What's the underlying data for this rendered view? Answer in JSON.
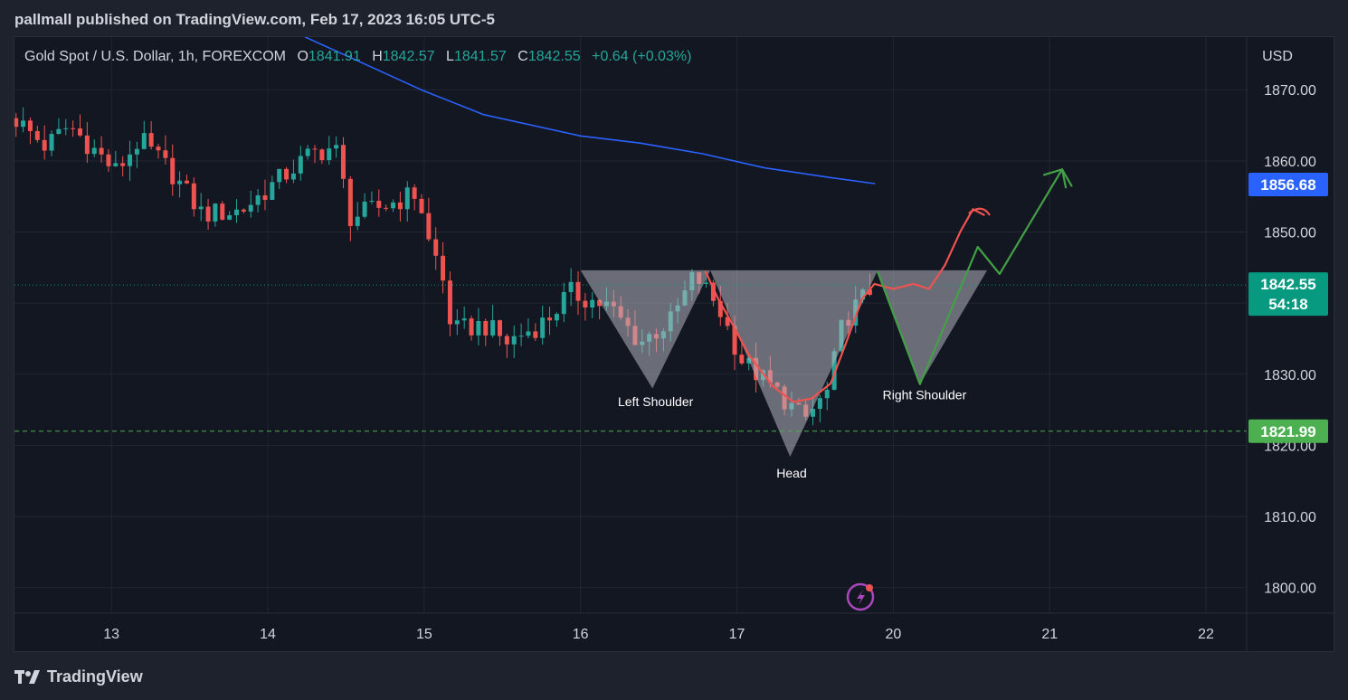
{
  "header": {
    "published": "pallmall published on TradingView.com, Feb 17, 2023 16:05 UTC-5"
  },
  "legend": {
    "symbol": "Gold Spot / U.S. Dollar, 1h, FOREXCOM",
    "o_label": "O",
    "o": "1841.91",
    "h_label": "H",
    "h": "1842.57",
    "l_label": "L",
    "l": "1841.57",
    "c_label": "C",
    "c": "1842.55",
    "change": "+0.64 (+0.03%)"
  },
  "footer": {
    "brand": "TradingView"
  },
  "colors": {
    "up": "#26a69a",
    "down": "#ef5350",
    "ma": "#2962ff",
    "ma_badge": "#2962ff",
    "price_badge": "#089981",
    "support_badge": "#4caf50",
    "projection_red": "#ef5350",
    "projection_green": "#43a047",
    "pattern_fill": "#b2b5be"
  },
  "chart_data": {
    "type": "candlestick",
    "currency": "USD",
    "x_ticks": [
      {
        "label": "13",
        "t": 0.62
      },
      {
        "label": "14",
        "t": 1.62
      },
      {
        "label": "15",
        "t": 2.62
      },
      {
        "label": "16",
        "t": 3.62
      },
      {
        "label": "17",
        "t": 4.62
      },
      {
        "label": "20",
        "t": 5.62
      },
      {
        "label": "21",
        "t": 6.62
      },
      {
        "label": "22",
        "t": 7.62
      }
    ],
    "y_ticks": [
      1870,
      1860,
      1850,
      1840,
      1830,
      1820,
      1810,
      1800
    ],
    "y_tick_labels": [
      "1870.00",
      "1860.00",
      "1850.00",
      "1830.00",
      "1820.00",
      "1810.00",
      "1800.00"
    ],
    "ylim": [
      1796.4,
      1877.4
    ],
    "xlim": [
      0.0,
      7.88
    ],
    "grid": true,
    "last_price": {
      "value": 1842.55,
      "label": "1842.55",
      "countdown": "54:18"
    },
    "ma_value": {
      "value": 1856.68,
      "label": "1856.68"
    },
    "support": {
      "value": 1821.99,
      "label": "1821.99"
    },
    "anchors": [
      {
        "t": 0.0,
        "p": 1866.0
      },
      {
        "t": 0.2,
        "p": 1862.0
      },
      {
        "t": 0.35,
        "p": 1865.0
      },
      {
        "t": 0.65,
        "p": 1858.5
      },
      {
        "t": 0.8,
        "p": 1863.0
      },
      {
        "t": 1.0,
        "p": 1858.5
      },
      {
        "t": 1.2,
        "p": 1852.5
      },
      {
        "t": 1.45,
        "p": 1853.0
      },
      {
        "t": 1.7,
        "p": 1857.5
      },
      {
        "t": 1.9,
        "p": 1861.0
      },
      {
        "t": 2.05,
        "p": 1862.0
      },
      {
        "t": 2.15,
        "p": 1852.0
      },
      {
        "t": 2.4,
        "p": 1854.0
      },
      {
        "t": 2.58,
        "p": 1855.5
      },
      {
        "t": 2.66,
        "p": 1847.5
      },
      {
        "t": 2.72,
        "p": 1845.5
      },
      {
        "t": 2.8,
        "p": 1836.0
      },
      {
        "t": 3.0,
        "p": 1837.0
      },
      {
        "t": 3.15,
        "p": 1834.5
      },
      {
        "t": 3.4,
        "p": 1837.5
      },
      {
        "t": 3.55,
        "p": 1841.5
      },
      {
        "t": 3.8,
        "p": 1839.5
      },
      {
        "t": 4.0,
        "p": 1834.5
      },
      {
        "t": 4.2,
        "p": 1837.5
      },
      {
        "t": 4.35,
        "p": 1844.0
      },
      {
        "t": 4.5,
        "p": 1839.5
      },
      {
        "t": 4.65,
        "p": 1832.0
      },
      {
        "t": 4.9,
        "p": 1827.0
      },
      {
        "t": 5.05,
        "p": 1823.5
      },
      {
        "t": 5.2,
        "p": 1827.5
      },
      {
        "t": 5.3,
        "p": 1837.5
      },
      {
        "t": 5.5,
        "p": 1842.5
      }
    ],
    "ma_line": [
      {
        "t": 1.86,
        "p": 1877.4
      },
      {
        "t": 2.2,
        "p": 1874.0
      },
      {
        "t": 2.6,
        "p": 1870.0
      },
      {
        "t": 3.0,
        "p": 1866.5
      },
      {
        "t": 3.62,
        "p": 1863.5
      },
      {
        "t": 4.0,
        "p": 1862.5
      },
      {
        "t": 4.4,
        "p": 1861.0
      },
      {
        "t": 4.8,
        "p": 1859.0
      },
      {
        "t": 5.2,
        "p": 1857.7
      },
      {
        "t": 5.5,
        "p": 1856.8
      }
    ],
    "pattern": {
      "left_shoulder": [
        {
          "t": 3.62,
          "p": 1844.6
        },
        {
          "t": 4.45,
          "p": 1844.6
        },
        {
          "t": 4.08,
          "p": 1828.0
        }
      ],
      "head": [
        {
          "t": 4.45,
          "p": 1844.6
        },
        {
          "t": 5.52,
          "p": 1844.6
        },
        {
          "t": 4.96,
          "p": 1818.4
        }
      ],
      "right_shoulder": [
        {
          "t": 5.52,
          "p": 1844.6
        },
        {
          "t": 6.22,
          "p": 1844.6
        },
        {
          "t": 5.79,
          "p": 1828.6
        }
      ]
    },
    "red_projection": [
      {
        "t": 4.42,
        "p": 1844.4
      },
      {
        "t": 4.5,
        "p": 1840.6
      },
      {
        "t": 4.58,
        "p": 1837.5
      },
      {
        "t": 4.7,
        "p": 1832.6
      },
      {
        "t": 4.85,
        "p": 1828.3
      },
      {
        "t": 4.98,
        "p": 1826.1
      },
      {
        "t": 5.1,
        "p": 1826.6
      },
      {
        "t": 5.22,
        "p": 1828.7
      },
      {
        "t": 5.32,
        "p": 1834.5
      },
      {
        "t": 5.42,
        "p": 1840.6
      },
      {
        "t": 5.5,
        "p": 1842.7
      },
      {
        "t": 5.62,
        "p": 1842.0
      },
      {
        "t": 5.75,
        "p": 1842.7
      },
      {
        "t": 5.85,
        "p": 1842.0
      },
      {
        "t": 5.95,
        "p": 1845.3
      },
      {
        "t": 6.05,
        "p": 1850.1
      },
      {
        "t": 6.13,
        "p": 1853.2
      },
      {
        "t": 6.2,
        "p": 1852.4
      }
    ],
    "green_projection": [
      {
        "t": 5.52,
        "p": 1844.4
      },
      {
        "t": 5.79,
        "p": 1828.6
      },
      {
        "t": 6.16,
        "p": 1847.9
      },
      {
        "t": 6.3,
        "p": 1844.1
      },
      {
        "t": 6.7,
        "p": 1858.8
      },
      {
        "t": 6.76,
        "p": 1856.5
      }
    ],
    "annotations": [
      {
        "text": "Left Shoulder",
        "t": 4.1,
        "p": 1825.5
      },
      {
        "text": "Head",
        "t": 4.97,
        "p": 1815.5
      },
      {
        "text": "Right Shoulder",
        "t": 5.82,
        "p": 1826.5
      }
    ]
  }
}
